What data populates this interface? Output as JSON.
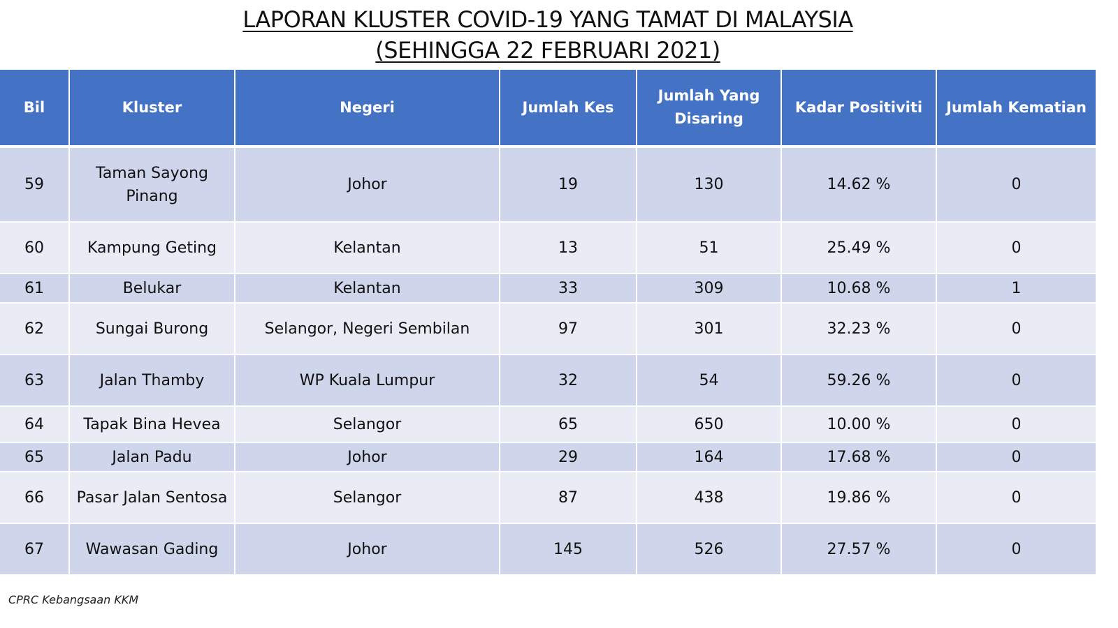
{
  "title": {
    "line1": "LAPORAN KLUSTER COVID-19 YANG TAMAT DI MALAYSIA",
    "line2": "(SEHINGGA  22 FEBRUARI 2021)"
  },
  "table": {
    "headers": [
      "Bil",
      "Kluster",
      "Negeri",
      "Jumlah Kes",
      "Jumlah Yang Disaring",
      "Kadar Positiviti",
      "Jumlah Kematian"
    ],
    "rows": [
      {
        "bil": "59",
        "kluster": "Taman Sayong Pinang",
        "negeri": "Johor",
        "jumlah_kes": "19",
        "jumlah_disaring": "130",
        "kadar_positiviti": "14.62 %",
        "jumlah_kematian": "0"
      },
      {
        "bil": "60",
        "kluster": "Kampung Geting",
        "negeri": "Kelantan",
        "jumlah_kes": "13",
        "jumlah_disaring": "51",
        "kadar_positiviti": "25.49 %",
        "jumlah_kematian": "0"
      },
      {
        "bil": "61",
        "kluster": "Belukar",
        "negeri": "Kelantan",
        "jumlah_kes": "33",
        "jumlah_disaring": "309",
        "kadar_positiviti": "10.68 %",
        "jumlah_kematian": "1"
      },
      {
        "bil": "62",
        "kluster": "Sungai Burong",
        "negeri": "Selangor, Negeri Sembilan",
        "jumlah_kes": "97",
        "jumlah_disaring": "301",
        "kadar_positiviti": "32.23 %",
        "jumlah_kematian": "0"
      },
      {
        "bil": "63",
        "kluster": "Jalan Thamby",
        "negeri": "WP Kuala Lumpur",
        "jumlah_kes": "32",
        "jumlah_disaring": "54",
        "kadar_positiviti": "59.26 %",
        "jumlah_kematian": "0"
      },
      {
        "bil": "64",
        "kluster": "Tapak Bina Hevea",
        "negeri": "Selangor",
        "jumlah_kes": "65",
        "jumlah_disaring": "650",
        "kadar_positiviti": "10.00 %",
        "jumlah_kematian": "0"
      },
      {
        "bil": "65",
        "kluster": "Jalan Padu",
        "negeri": "Johor",
        "jumlah_kes": "29",
        "jumlah_disaring": "164",
        "kadar_positiviti": "17.68 %",
        "jumlah_kematian": "0"
      },
      {
        "bil": "66",
        "kluster": "Pasar Jalan Sentosa",
        "negeri": "Selangor",
        "jumlah_kes": "87",
        "jumlah_disaring": "438",
        "kadar_positiviti": "19.86 %",
        "jumlah_kematian": "0"
      },
      {
        "bil": "67",
        "kluster": "Wawasan Gading",
        "negeri": "Johor",
        "jumlah_kes": "145",
        "jumlah_disaring": "526",
        "kadar_positiviti": "27.57 %",
        "jumlah_kematian": "0"
      }
    ]
  },
  "footer": {
    "source": "CPRC Kebangsaan KKM"
  }
}
